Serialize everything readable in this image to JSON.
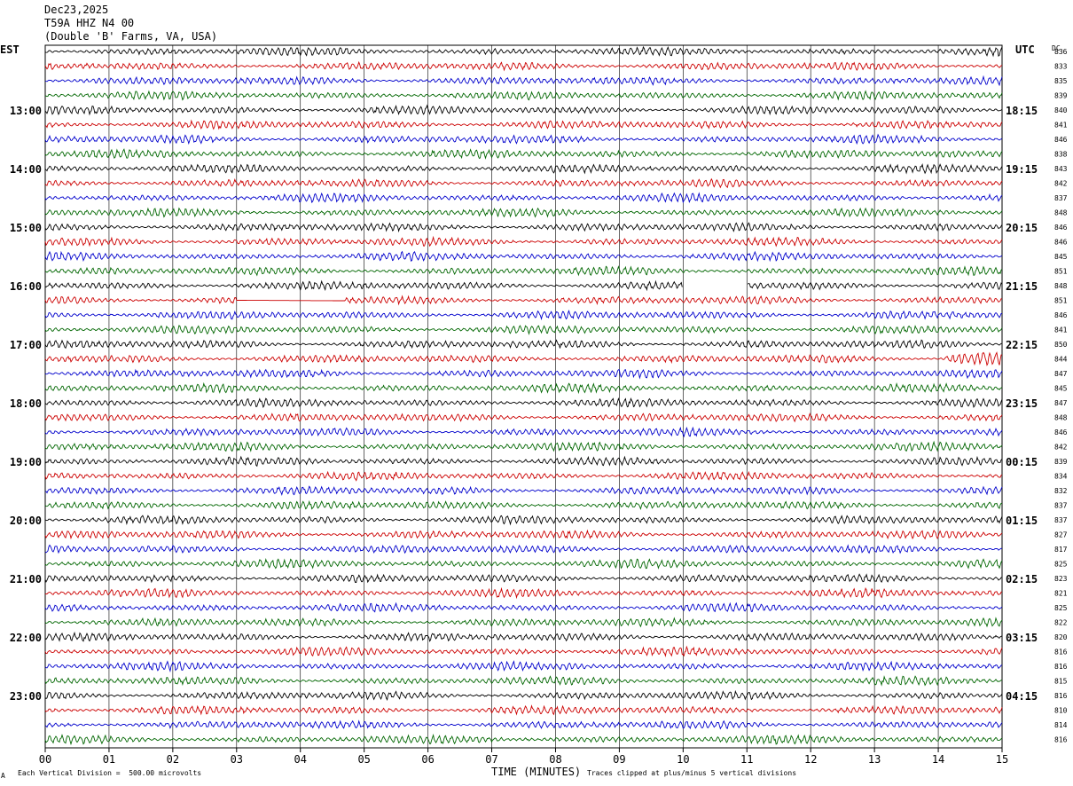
{
  "header": {
    "date": "Dec23,2025",
    "station": "T59A HHZ N4 00",
    "location": "(Double 'B' Farms, VA, USA)"
  },
  "left_timezone": "EST",
  "right_timezone": "UTC",
  "right_column_header": "DC",
  "footer": {
    "scale_note": "Each Vertical Division =  500.00 microvolts",
    "clip_note": "Traces clipped at plus/minus 5 vertical divisions",
    "corner_mark": "A"
  },
  "colors": {
    "trace_cycle": [
      "#000000",
      "#cc0000",
      "#0000cc",
      "#006600"
    ],
    "grid": "#000000"
  },
  "chart_data": {
    "type": "line",
    "title": "",
    "xlabel": "TIME (MINUTES)",
    "x_ticks": [
      "00",
      "01",
      "02",
      "03",
      "04",
      "05",
      "06",
      "07",
      "08",
      "09",
      "10",
      "11",
      "12",
      "13",
      "14",
      "15"
    ],
    "xlim": [
      0,
      15
    ],
    "traces_per_hour": 4,
    "minutes_per_trace": 15,
    "left_hour_labels": [
      {
        "trace": 4,
        "label": "13:00"
      },
      {
        "trace": 8,
        "label": "14:00"
      },
      {
        "trace": 12,
        "label": "15:00"
      },
      {
        "trace": 16,
        "label": "16:00"
      },
      {
        "trace": 20,
        "label": "17:00"
      },
      {
        "trace": 24,
        "label": "18:00"
      },
      {
        "trace": 28,
        "label": "19:00"
      },
      {
        "trace": 32,
        "label": "20:00"
      },
      {
        "trace": 36,
        "label": "21:00"
      },
      {
        "trace": 40,
        "label": "22:00"
      },
      {
        "trace": 44,
        "label": "23:00"
      }
    ],
    "right_hour_labels": [
      {
        "trace": 4,
        "label": "18:15"
      },
      {
        "trace": 8,
        "label": "19:15"
      },
      {
        "trace": 12,
        "label": "20:15"
      },
      {
        "trace": 16,
        "label": "21:15"
      },
      {
        "trace": 20,
        "label": "22:15"
      },
      {
        "trace": 24,
        "label": "23:15"
      },
      {
        "trace": 28,
        "label": "00:15"
      },
      {
        "trace": 32,
        "label": "01:15"
      },
      {
        "trace": 36,
        "label": "02:15"
      },
      {
        "trace": 40,
        "label": "03:15"
      },
      {
        "trace": 44,
        "label": "04:15"
      }
    ],
    "dc_offsets": [
      "836",
      "833",
      "835",
      "839",
      "840",
      "841",
      "846",
      "838",
      "843",
      "842",
      "837",
      "848",
      "846",
      "846",
      "845",
      "851",
      "848",
      "851",
      "846",
      "841",
      "850",
      "844",
      "847",
      "845",
      "847",
      "848",
      "846",
      "842",
      "839",
      "834",
      "832",
      "837",
      "837",
      "827",
      "817",
      "825",
      "823",
      "821",
      "825",
      "822",
      "820",
      "816",
      "816",
      "815",
      "816",
      "810",
      "814",
      "816"
    ],
    "gaps": [
      {
        "trace": 16,
        "start_min": 10.0,
        "end_min": 11.0
      }
    ],
    "flatline_segments": [
      {
        "trace": 17,
        "start_min": 3.0,
        "end_min": 4.7
      }
    ],
    "burst_events": [
      {
        "trace": 21,
        "start_min": 14.1,
        "end_min": 15.0,
        "amplitude": 1.8
      }
    ]
  }
}
